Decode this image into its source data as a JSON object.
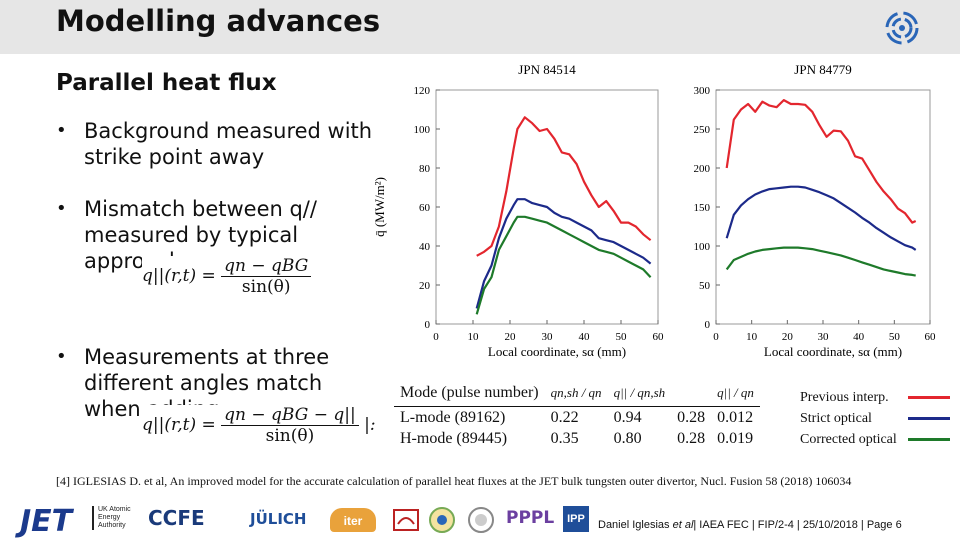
{
  "header": {
    "title": "Modelling advances"
  },
  "content": {
    "subtitle": "Parallel heat flux",
    "bullets": [
      {
        "text": "Background measured with strike point away"
      },
      {
        "text": "Mismatch between q// measured by typical approach"
      },
      {
        "text": "Measurements at three different angles match when adding"
      }
    ],
    "bullet_glyph": "•",
    "eq1": {
      "lhs": "q||(r,t) =",
      "num": "qn − qBG",
      "den": "sin(θ)"
    },
    "eq2": {
      "lhs": "q||(r,t) =",
      "num": "qn − qBG − q||",
      "den": "sin(θ)"
    },
    "eq2_tail": "|:"
  },
  "chart_data": [
    {
      "type": "line",
      "title": "JPN 84514",
      "xlabel": "Local coordinate, sα (mm)",
      "ylabel": "q̄ (MW/m²)",
      "xlim": [
        0,
        60
      ],
      "ylim": [
        0,
        120
      ],
      "xticks": [
        0,
        10,
        20,
        30,
        40,
        50,
        60
      ],
      "yticks": [
        0,
        20,
        40,
        60,
        80,
        100,
        120
      ],
      "x": [
        11,
        13,
        15,
        17,
        19,
        21,
        22,
        24,
        26,
        28,
        30,
        32,
        34,
        36,
        38,
        40,
        42,
        44,
        46,
        48,
        50,
        52,
        54,
        56,
        58
      ],
      "series": [
        {
          "name": "Previous interp.",
          "color": "#e3262e",
          "values": [
            35,
            37,
            40,
            50,
            68,
            90,
            100,
            106,
            103,
            99,
            100,
            95,
            88,
            87,
            82,
            73,
            66,
            60,
            63,
            58,
            52,
            52,
            50,
            46,
            43
          ]
        },
        {
          "name": "Strict optical",
          "color": "#1c2a8a",
          "values": [
            8,
            22,
            30,
            44,
            54,
            61,
            64,
            64,
            62,
            61,
            60,
            57,
            55,
            54,
            52,
            50,
            48,
            44,
            43,
            42,
            40,
            38,
            36,
            34,
            31
          ]
        },
        {
          "name": "Corrected optical",
          "color": "#1e7a2a",
          "values": [
            5,
            18,
            24,
            38,
            45,
            52,
            55,
            55,
            54,
            53,
            52,
            50,
            48,
            46,
            44,
            42,
            40,
            38,
            37,
            36,
            34,
            32,
            30,
            28,
            24
          ]
        }
      ]
    },
    {
      "type": "line",
      "title": "JPN 84779",
      "xlabel": "Local coordinate, sα (mm)",
      "ylabel": "",
      "xlim": [
        0,
        60
      ],
      "ylim": [
        0,
        300
      ],
      "xticks": [
        0,
        10,
        20,
        30,
        40,
        50,
        60
      ],
      "yticks": [
        0,
        50,
        100,
        150,
        200,
        250,
        300
      ],
      "x": [
        3,
        5,
        7,
        9,
        11,
        13,
        15,
        17,
        19,
        21,
        23,
        25,
        27,
        29,
        31,
        33,
        35,
        37,
        39,
        41,
        43,
        45,
        47,
        49,
        51,
        53,
        55,
        56
      ],
      "series": [
        {
          "name": "Previous interp.",
          "color": "#e3262e",
          "values": [
            200,
            262,
            275,
            282,
            272,
            285,
            280,
            278,
            287,
            282,
            282,
            281,
            272,
            255,
            240,
            248,
            247,
            235,
            215,
            212,
            197,
            182,
            170,
            160,
            148,
            142,
            130,
            132
          ]
        },
        {
          "name": "Strict optical",
          "color": "#1c2a8a",
          "values": [
            110,
            140,
            152,
            160,
            166,
            170,
            173,
            174,
            175,
            176,
            176,
            175,
            172,
            169,
            165,
            161,
            155,
            149,
            143,
            136,
            130,
            123,
            117,
            111,
            106,
            101,
            98,
            95
          ]
        },
        {
          "name": "Corrected optical",
          "color": "#1e7a2a",
          "values": [
            70,
            82,
            86,
            90,
            93,
            95,
            96,
            97,
            98,
            98,
            98,
            97,
            96,
            94,
            92,
            90,
            88,
            85,
            82,
            79,
            76,
            73,
            70,
            68,
            66,
            64,
            63,
            62
          ]
        }
      ]
    }
  ],
  "table": {
    "headers": [
      "Mode (pulse number)",
      "qn,sh / qn",
      "q|| / qn,sh",
      "q|| / qn"
    ],
    "rows": [
      [
        "L-mode (89162)",
        "0.22",
        "0.94",
        "0.012"
      ],
      [
        "H-mode (89445)",
        "0.35",
        "0.80",
        "0.019"
      ]
    ],
    "extra_col": [
      "0.28",
      "0.28"
    ]
  },
  "legend": [
    {
      "label": "Previous interp.",
      "color": "#e3262e"
    },
    {
      "label": "Strict optical",
      "color": "#1c2a8a"
    },
    {
      "label": "Corrected optical",
      "color": "#1e7a2a"
    }
  ],
  "reference": "[4] IGLESIAS D. et al, An improved model for the accurate calculation of parallel heat fluxes at the JET bulk tungsten outer divertor, Nucl. Fusion 58 (2018) 106034",
  "footer": {
    "logos": {
      "jet": "JET",
      "ukaea": "UK Atomic Energy Authority",
      "ccfe": "CCFE",
      "julich": "JÜLICH",
      "iter": "iter",
      "pppl": "PPPL",
      "ipp": "IPP"
    },
    "credit_pre": "Daniel Iglesias ",
    "credit_italic": "et al",
    "credit_post": "| IAEA FEC | FIP/2-4 | 25/10/2018 | Page 6"
  }
}
